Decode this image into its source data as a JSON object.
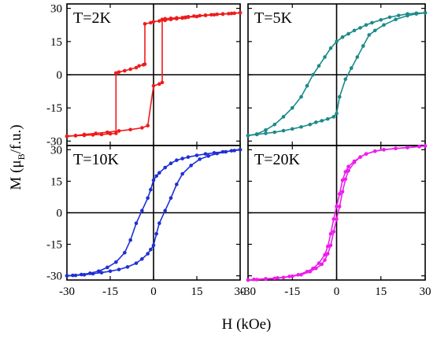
{
  "figure": {
    "ylabel_prefix": "M (μ",
    "ylabel_sub": "B",
    "ylabel_suffix": "/f.u.)",
    "xlabel": "H (kOe)"
  },
  "chart_data": [
    {
      "type": "line",
      "panel_label": "T=2K",
      "color": "#ee1c1c",
      "xlim": [
        -30,
        30
      ],
      "ylim": [
        -32,
        32
      ],
      "xticks": [
        "-30",
        "-15",
        "0",
        "15",
        "30"
      ],
      "yticks": [
        "30",
        "15",
        "0",
        "-15",
        "-30"
      ],
      "series": [
        {
          "x": [
            -30,
            -27,
            -24,
            -21,
            -18,
            -15,
            -13,
            -13,
            -12,
            -10,
            -8,
            -6,
            -5,
            -3.5,
            -3,
            -3,
            -1,
            0,
            2,
            4,
            6,
            8,
            10,
            11,
            11,
            12,
            14,
            16,
            18,
            20,
            22,
            24,
            26,
            28,
            30
          ],
          "y": [
            -27.8,
            -27.6,
            -27.4,
            -27.2,
            -27,
            -26.7,
            -26.5,
            0.8,
            1.2,
            1.8,
            2.5,
            3.2,
            4,
            4.5,
            4.8,
            23,
            23.5,
            24,
            24.3,
            24.6,
            25,
            25.3,
            25.6,
            25.8,
            26,
            26.2,
            26.5,
            26.7,
            26.9,
            27.1,
            27.3,
            27.5,
            27.6,
            27.8,
            28
          ]
        },
        {
          "x": [
            30,
            27,
            24,
            21,
            18,
            15,
            12,
            10,
            8,
            6,
            4,
            3,
            3,
            2,
            0,
            -2,
            -4,
            -8,
            -12,
            -16,
            -20,
            -24,
            -27,
            -30
          ],
          "y": [
            28,
            27.7,
            27.4,
            27.1,
            26.8,
            26.3,
            26,
            25.8,
            25.7,
            25.5,
            25.3,
            25,
            -3.5,
            -4.2,
            -5,
            -23,
            -24,
            -24.8,
            -25.4,
            -26,
            -26.5,
            -27,
            -27.5,
            -27.8
          ]
        }
      ]
    },
    {
      "type": "line",
      "panel_label": "T=5K",
      "color": "#1a8a8a",
      "xlim": [
        -30,
        30
      ],
      "ylim": [
        -32,
        32
      ],
      "xticks": [
        "-30",
        "-15",
        "0",
        "15",
        "30"
      ],
      "yticks": [
        "30",
        "15",
        "0",
        "-15",
        "-30"
      ],
      "series": [
        {
          "x": [
            -30,
            -27,
            -24,
            -21,
            -18,
            -15,
            -12,
            -9,
            -7,
            -5,
            -3,
            -1,
            0,
            1,
            3,
            5,
            7,
            9,
            11,
            13,
            16,
            20,
            24,
            27,
            30
          ],
          "y": [
            -27.5,
            -27,
            -26.5,
            -26,
            -25.3,
            -24.5,
            -23.6,
            -22.5,
            -21.5,
            -20.8,
            -20,
            -19,
            -17.5,
            -10,
            -2,
            3,
            8,
            13,
            18,
            20,
            22.5,
            25,
            26.7,
            27.5,
            28
          ]
        },
        {
          "x": [
            30,
            27,
            24,
            21,
            18,
            15,
            12,
            10,
            8,
            6,
            4,
            2,
            0,
            -2,
            -4,
            -6,
            -8,
            -10,
            -12,
            -15,
            -18,
            -21,
            -24,
            -27,
            -30
          ],
          "y": [
            28,
            27.8,
            27.5,
            26.8,
            26,
            24.8,
            23.5,
            22.5,
            21.2,
            20,
            18.5,
            17,
            15,
            12,
            8,
            4,
            0,
            -5,
            -10,
            -15,
            -19,
            -22.5,
            -25,
            -26.8,
            -27.5
          ]
        }
      ]
    },
    {
      "type": "line",
      "panel_label": "T=10K",
      "color": "#1f2fd6",
      "xlim": [
        -30,
        30
      ],
      "ylim": [
        -32,
        32
      ],
      "xticks": [
        "-30",
        "-15",
        "0",
        "15",
        "30"
      ],
      "yticks": [
        "30",
        "15",
        "0",
        "-15",
        "-30"
      ],
      "series": [
        {
          "x": [
            -30,
            -27,
            -24,
            -21,
            -18,
            -15,
            -12,
            -9,
            -6,
            -4,
            -2,
            -1,
            0,
            1,
            2,
            4,
            6,
            8,
            10,
            13,
            16,
            19,
            22,
            25,
            28,
            30
          ],
          "y": [
            -30,
            -29.8,
            -29.5,
            -29,
            -28.5,
            -27.8,
            -27,
            -25.8,
            -24,
            -22,
            -19.5,
            -17.5,
            -15.5,
            -10,
            -5,
            1,
            7,
            13.5,
            18.5,
            22.5,
            25.5,
            27,
            28.2,
            29,
            29.6,
            30
          ]
        },
        {
          "x": [
            30,
            27,
            24,
            21,
            18,
            15,
            12,
            10,
            8,
            6,
            4,
            2,
            1,
            0,
            -1,
            -2,
            -4,
            -6,
            -8,
            -10,
            -13,
            -16,
            -19,
            -22,
            -25,
            -28,
            -30
          ],
          "y": [
            30,
            29.5,
            29,
            28.5,
            28,
            27.3,
            26.5,
            25.8,
            25,
            23.5,
            21.5,
            19,
            17.5,
            15.5,
            11,
            7,
            1,
            -5,
            -13,
            -19,
            -23.5,
            -26,
            -27.8,
            -28.8,
            -29.4,
            -29.8,
            -30
          ]
        }
      ]
    },
    {
      "type": "line",
      "panel_label": "T=20K",
      "color": "#ee1cee",
      "xlim": [
        -30,
        30
      ],
      "ylim": [
        -32,
        32
      ],
      "xticks": [
        "-30",
        "-15",
        "0",
        "15",
        "30"
      ],
      "yticks": [
        "30",
        "15",
        "0",
        "-15",
        "-30"
      ],
      "series": [
        {
          "x": [
            -30,
            -27,
            -24,
            -21,
            -18,
            -15,
            -12,
            -9,
            -7,
            -5,
            -4,
            -3,
            -2,
            -1,
            0,
            1,
            2,
            3,
            4,
            6,
            8,
            10,
            13,
            16,
            20,
            24,
            28,
            30
          ],
          "y": [
            -32,
            -31.8,
            -31.5,
            -31.2,
            -30.8,
            -30.2,
            -29.5,
            -28,
            -26.5,
            -24.5,
            -22.5,
            -19.5,
            -15.5,
            -9,
            -3,
            3,
            10,
            16,
            20,
            24,
            26.5,
            28,
            29.3,
            30,
            30.6,
            31,
            31.5,
            31.8
          ]
        },
        {
          "x": [
            30,
            28,
            24,
            20,
            16,
            13,
            10,
            8,
            6,
            4,
            3,
            2,
            1,
            0,
            -1,
            -2,
            -3,
            -4,
            -6,
            -8,
            -10,
            -13,
            -16,
            -20,
            -24,
            -28,
            -30
          ],
          "y": [
            31.8,
            31.5,
            31,
            30.6,
            30,
            29.3,
            28,
            26.5,
            24.5,
            22,
            19.5,
            15.5,
            9,
            3,
            -3,
            -10,
            -16,
            -20,
            -24,
            -26.5,
            -28,
            -29.5,
            -30.3,
            -31,
            -31.4,
            -31.7,
            -32
          ]
        }
      ]
    }
  ]
}
